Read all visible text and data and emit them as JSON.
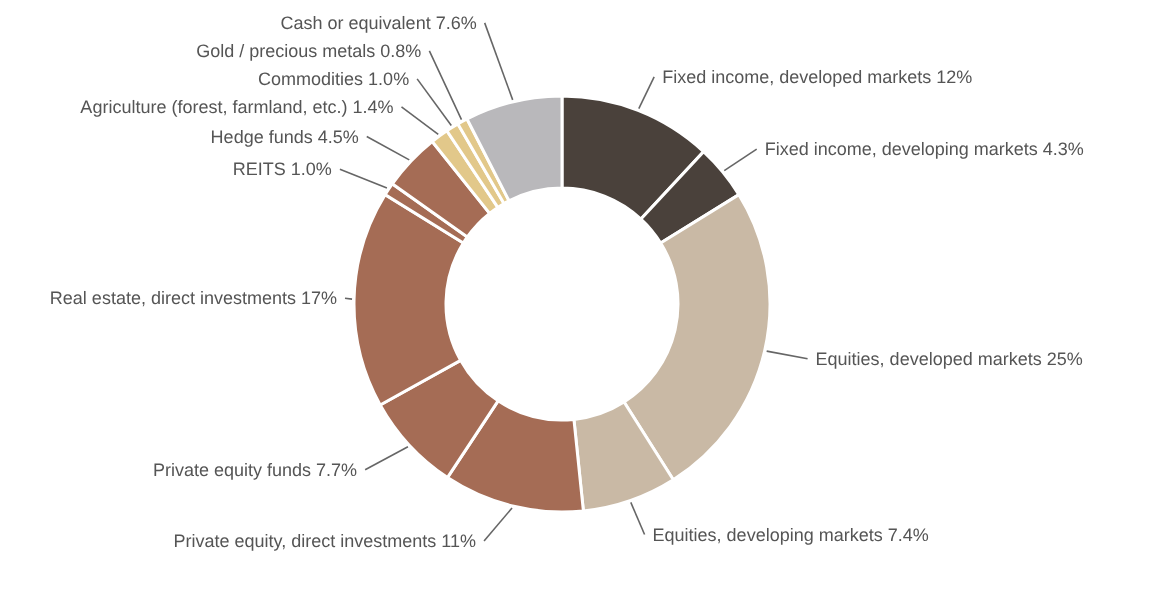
{
  "chart_data": {
    "type": "donut",
    "categories": [
      "Fixed income, developed markets",
      "Fixed income, developing markets",
      "Equities, developed markets",
      "Equities, developing markets",
      "Private equity, direct investments",
      "Private equity funds",
      "Real estate, direct investments",
      "REITS",
      "Hedge funds",
      "Agriculture (forest, farmland, etc.)",
      "Commodities",
      "Gold / precious metals",
      "Cash or equivalent"
    ],
    "values": [
      12,
      4.3,
      25,
      7.4,
      11,
      7.7,
      17,
      1.0,
      4.5,
      1.4,
      1.0,
      0.8,
      7.6
    ],
    "value_labels": [
      "12%",
      "4.3%",
      "25%",
      "7.4%",
      "11%",
      "7.7%",
      "17%",
      "1.0%",
      "4.5%",
      "1.4%",
      "1.0%",
      "0.8%",
      "7.6%"
    ],
    "colors": [
      "#4a413b",
      "#4a413b",
      "#c9b9a5",
      "#c9b9a5",
      "#a56c55",
      "#a56c55",
      "#a56c55",
      "#a56c55",
      "#a56c55",
      "#e2c88a",
      "#e2c88a",
      "#e2c88a",
      "#b9b8bb"
    ]
  }
}
